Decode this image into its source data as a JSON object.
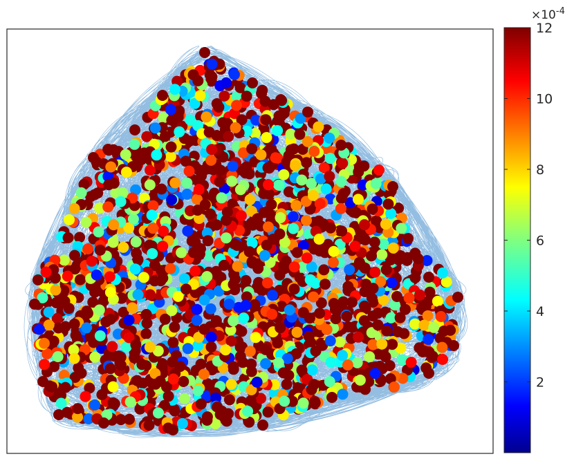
{
  "chart_data": {
    "type": "scatter",
    "description_kind": "network-graph",
    "title": "",
    "xlabel": "",
    "ylabel": "",
    "edge_color": "#3b87c8",
    "node_count_estimate": 2500,
    "colorbar": {
      "colormap": "jet",
      "exponent_prefix": "×10",
      "exponent": "-4",
      "range": [
        0.0,
        12.0
      ],
      "ticks": [
        {
          "value": 2,
          "label": "2"
        },
        {
          "value": 4,
          "label": "4"
        },
        {
          "value": 6,
          "label": "6"
        },
        {
          "value": 8,
          "label": "8"
        },
        {
          "value": 10,
          "label": "10"
        },
        {
          "value": 12,
          "label": "12"
        }
      ]
    }
  }
}
